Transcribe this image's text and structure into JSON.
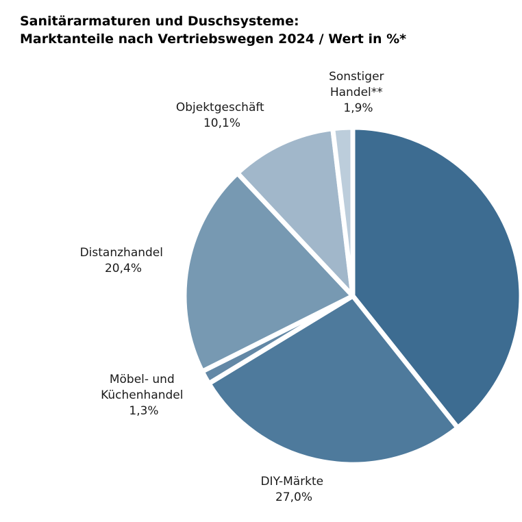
{
  "chart_data": {
    "type": "pie",
    "title": [
      "Sanitärarmaturen und Duschsysteme:",
      "Marktanteile nach Vertriebswegen 2024 / Wert in %*"
    ],
    "slices": [
      {
        "name": "",
        "value": 39.3,
        "value_label": "",
        "color": "#3d6c91"
      },
      {
        "name": "DIY-Märkte",
        "value": 27.0,
        "value_label": "27,0%",
        "color": "#4e7a9c"
      },
      {
        "name": "Möbel- und Küchenhandel",
        "value": 1.3,
        "value_label": "1,3%",
        "color": "#6388a6"
      },
      {
        "name": "Distanzhandel",
        "value": 20.4,
        "value_label": "20,4%",
        "color": "#7799b2"
      },
      {
        "name": "Objektgeschäft",
        "value": 10.1,
        "value_label": "10,1%",
        "color": "#a1b7ca"
      },
      {
        "name": "Sonstiger Handel**",
        "value": 1.9,
        "value_label": "1,9%",
        "color": "#bccddb"
      }
    ]
  }
}
